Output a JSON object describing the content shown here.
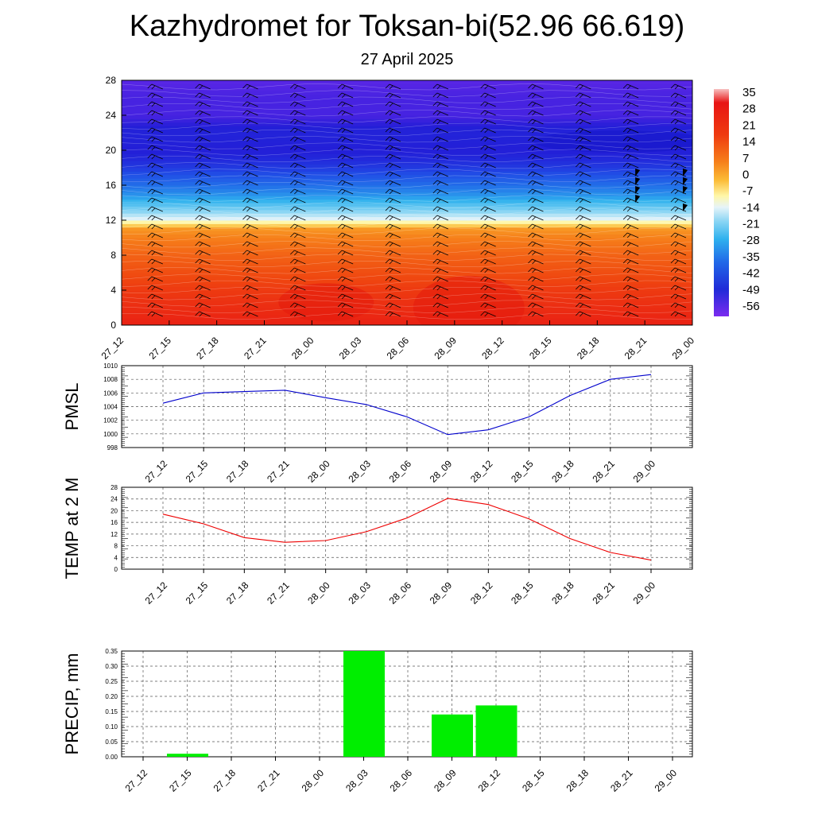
{
  "header": {
    "title": "Kazhydromet for Toksan-bi(52.96 66.619)",
    "subtitle": "27 April 2025"
  },
  "chart_data": [
    {
      "type": "heatmap",
      "name": "cross-section",
      "title": "",
      "xlabel": "",
      "ylabel": "",
      "x_tick_labels": [
        "27_12",
        "27_15",
        "27_18",
        "27_21",
        "28_00",
        "28_03",
        "28_06",
        "28_09",
        "28_12",
        "28_15",
        "28_18",
        "28_21",
        "29_00"
      ],
      "y_ticks": [
        0,
        4,
        8,
        12,
        16,
        20,
        24,
        28
      ],
      "ylim": [
        0,
        28
      ],
      "colorbar_labels": [
        "35",
        "28",
        "21",
        "14",
        "7",
        "0",
        "-7",
        "-14",
        "-21",
        "-28",
        "-35",
        "-42",
        "-49",
        "-56"
      ],
      "colorbar_range": [
        -60,
        38
      ],
      "level_temperature_profile": {
        "levels": [
          0,
          2,
          4,
          6,
          8,
          10,
          11,
          12,
          13,
          14,
          15,
          16,
          17,
          18,
          19,
          20,
          22,
          24,
          26,
          28
        ],
        "temps": [
          22,
          20,
          18,
          15,
          12,
          8,
          5,
          -14,
          -22,
          -28,
          -35,
          -40,
          -45,
          -50,
          -53,
          -55,
          -54,
          -57,
          -57,
          -58
        ]
      },
      "colors": {
        "hot": "#e8140a",
        "warm": "#f56b0f",
        "orange": "#f9a521",
        "yellow": "#fff0a0",
        "pale": "#d9f0f7",
        "cyan": "#35b6ee",
        "blue": "#1c5fe5",
        "deep": "#1f1fd6",
        "violet": "#7d2bef"
      },
      "wind_barbs": "present",
      "grid": true
    },
    {
      "type": "line",
      "ylabel": "PMSL",
      "x": [
        "27_12",
        "27_15",
        "27_18",
        "27_21",
        "28_00",
        "28_03",
        "28_06",
        "28_09",
        "28_12",
        "28_15",
        "28_18",
        "28_21",
        "29_00"
      ],
      "series": [
        {
          "values": [
            1004.5,
            1006.0,
            1006.2,
            1006.4,
            1005.3,
            1004.3,
            1002.5,
            999.9,
            1000.6,
            1002.5,
            1005.6,
            1008.0,
            1008.7
          ],
          "color": "#0000cc"
        }
      ],
      "y_ticks": [
        998,
        1000,
        1002,
        1004,
        1006,
        1008,
        1010
      ],
      "ylim": [
        998,
        1010
      ],
      "grid": true
    },
    {
      "type": "line",
      "ylabel": "TEMP at 2 M",
      "x": [
        "27_12",
        "27_15",
        "27_18",
        "27_21",
        "28_00",
        "28_03",
        "28_06",
        "28_09",
        "28_12",
        "28_15",
        "28_18",
        "28_21",
        "29_00"
      ],
      "series": [
        {
          "values": [
            18.8,
            15.5,
            10.8,
            9.2,
            9.8,
            12.8,
            17.5,
            24.2,
            22.1,
            17.2,
            10.5,
            5.7,
            3.1
          ],
          "color": "#ee0000"
        }
      ],
      "y_ticks": [
        0,
        4,
        8,
        12,
        16,
        20,
        24,
        28
      ],
      "ylim": [
        0,
        28
      ],
      "grid": true
    },
    {
      "type": "bar",
      "ylabel": "PRECIP, mm",
      "categories": [
        "27_12",
        "27_15",
        "27_18",
        "27_21",
        "28_00",
        "28_03",
        "28_06",
        "28_09",
        "28_12",
        "28_15",
        "28_18",
        "28_21",
        "29_00"
      ],
      "values": [
        0,
        0.01,
        0,
        0,
        0,
        0.35,
        0,
        0.14,
        0.17,
        0,
        0,
        0,
        0
      ],
      "y_tick_labels": [
        "0.00",
        "0.05",
        "0.10",
        "0.15",
        "0.20",
        "0.25",
        "0.30",
        "0.35"
      ],
      "ylim": [
        0,
        0.35
      ],
      "bar_color": "#00ee00",
      "grid": true
    }
  ]
}
